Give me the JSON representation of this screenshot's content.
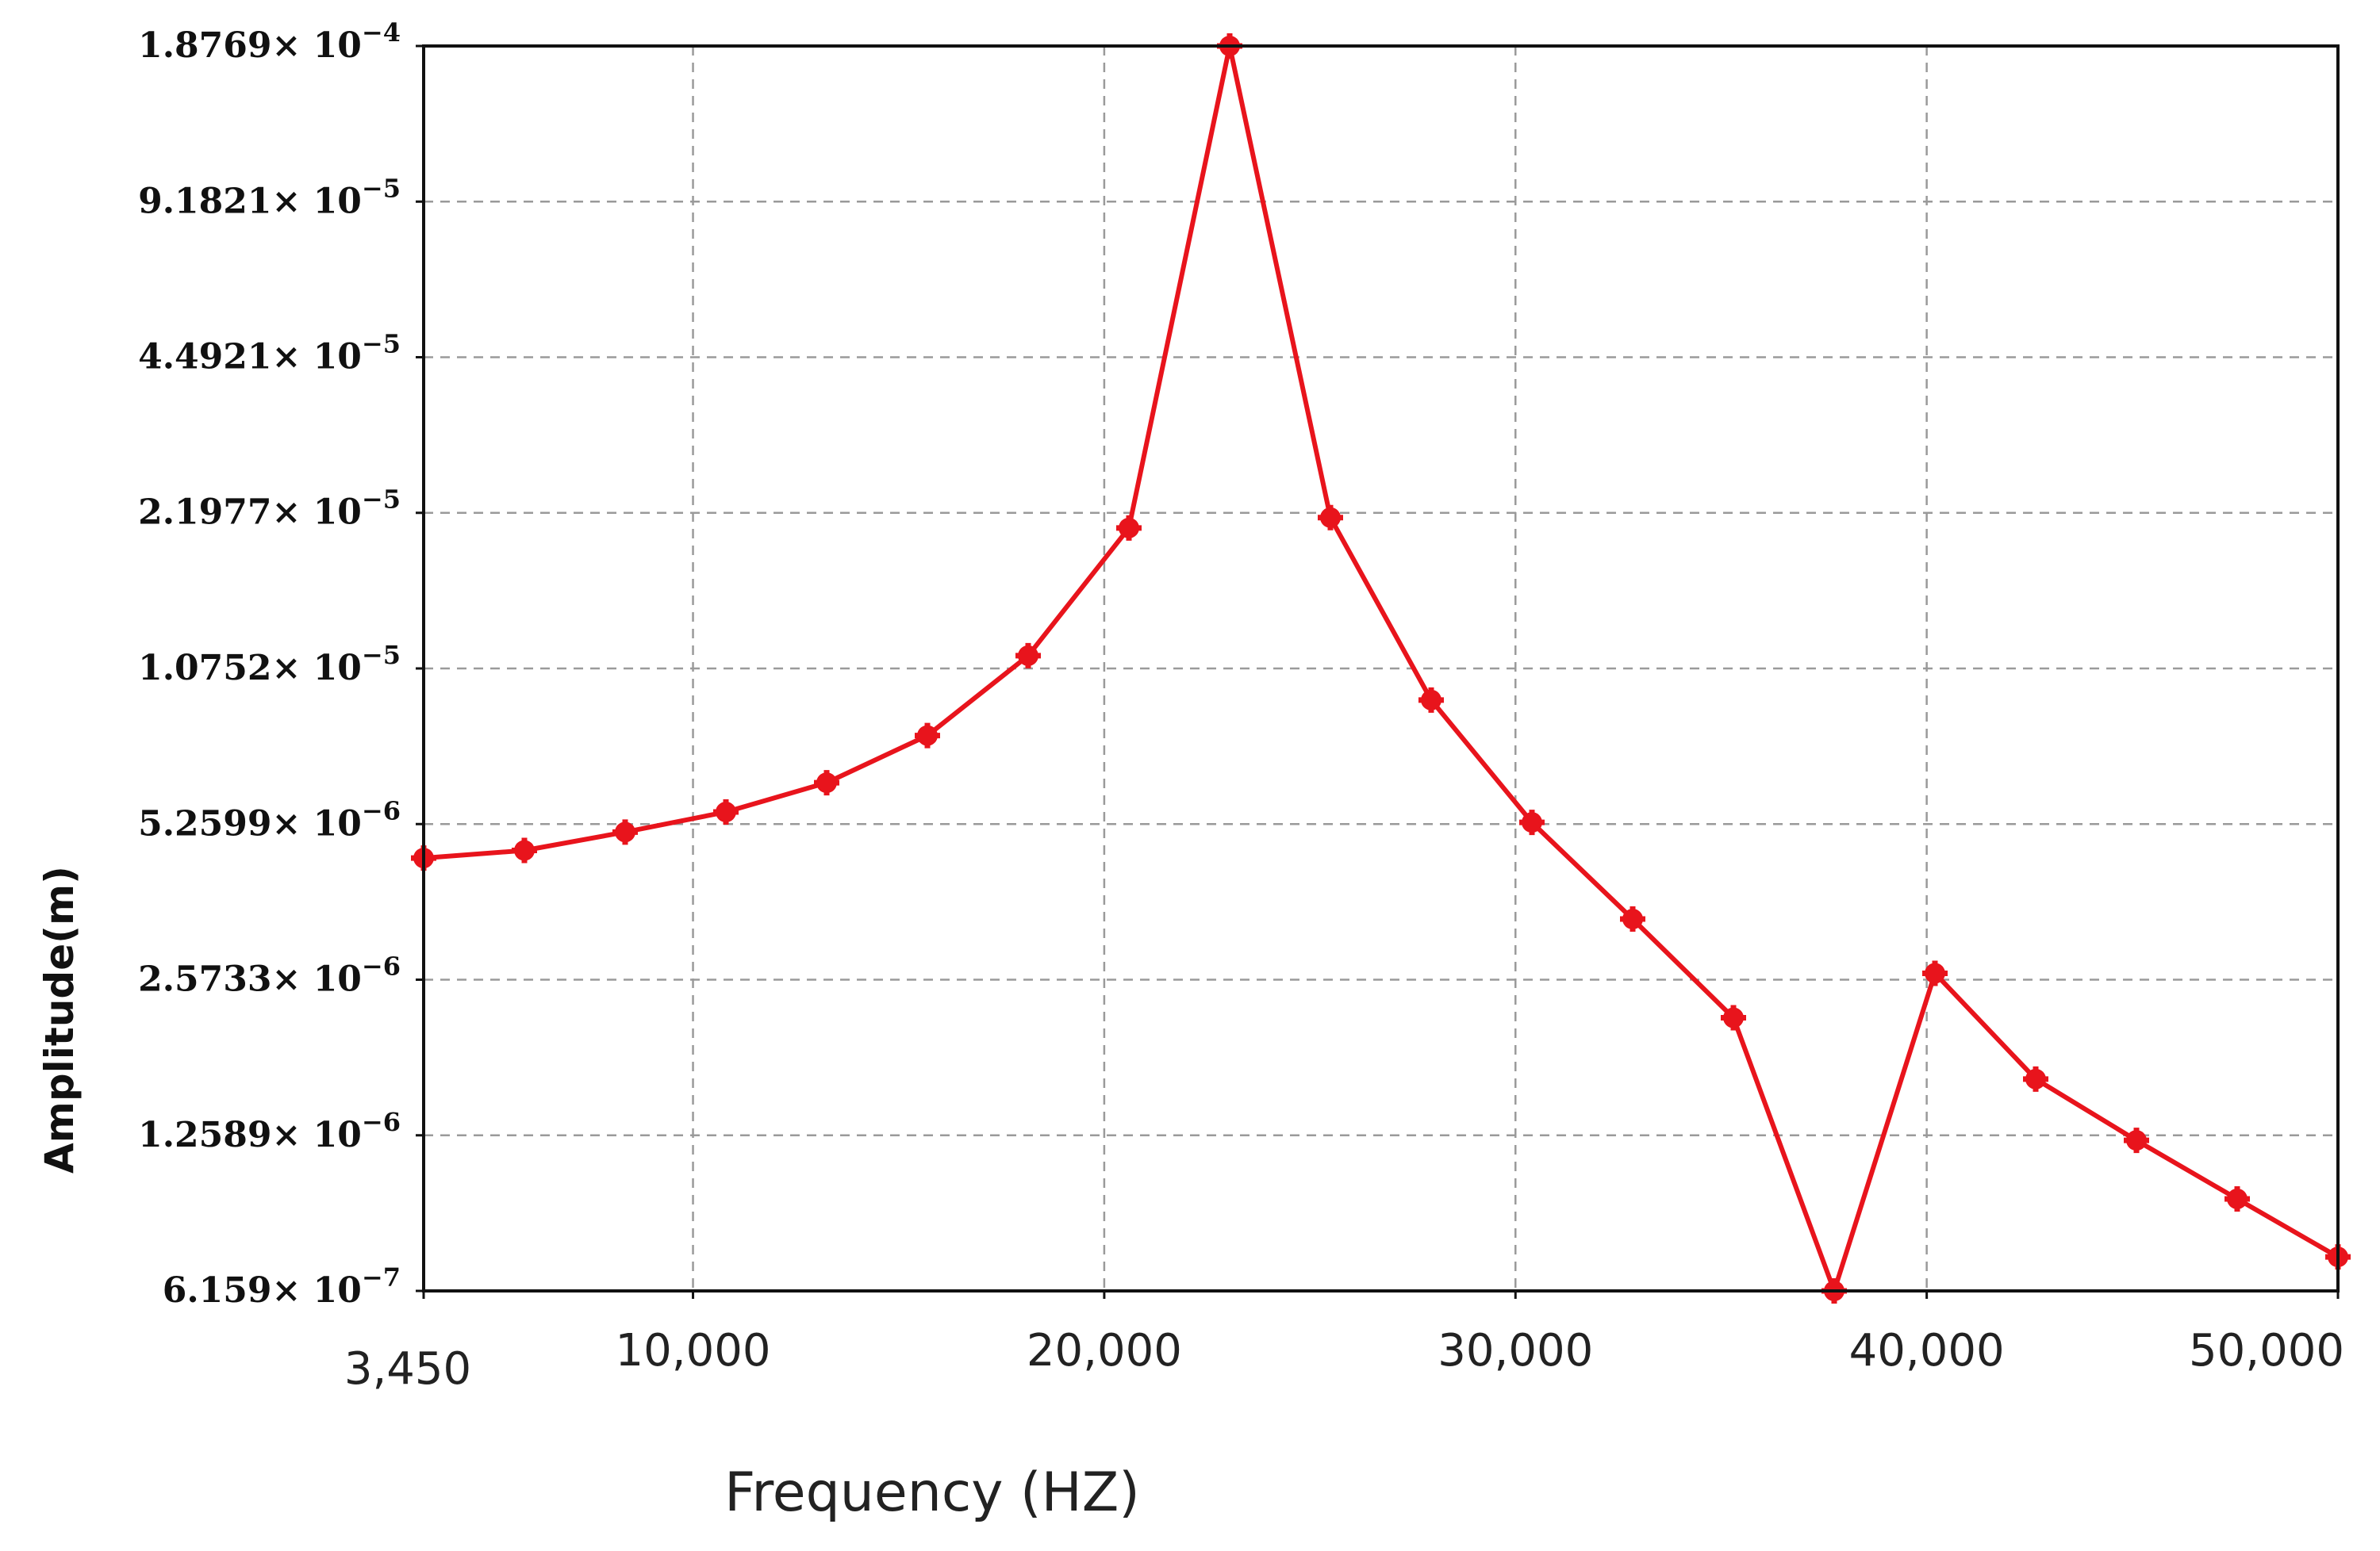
{
  "chart_data": {
    "type": "line",
    "xlabel": "Frequency (HZ)",
    "ylabel": "Amplitude(m)",
    "xlim": [
      3450,
      50000
    ],
    "x_ticks": [
      {
        "value": 3450,
        "label": "3,450"
      },
      {
        "value": 10000,
        "label": "10,000"
      },
      {
        "value": 20000,
        "label": "20,000"
      },
      {
        "value": 30000,
        "label": "30,000"
      },
      {
        "value": 40000,
        "label": "40,000"
      },
      {
        "value": 50000,
        "label": "50,000"
      }
    ],
    "y_scale": "log",
    "ylim": [
      6.159e-07,
      0.00018769
    ],
    "y_ticks": [
      {
        "value": 0.00018769,
        "mantissa": "1.8769",
        "exponent": "−4"
      },
      {
        "value": 9.1821e-05,
        "mantissa": "9.1821",
        "exponent": "−5"
      },
      {
        "value": 4.4921e-05,
        "mantissa": "4.4921",
        "exponent": "−5"
      },
      {
        "value": 2.1977e-05,
        "mantissa": "2.1977",
        "exponent": "−5"
      },
      {
        "value": 1.0752e-05,
        "mantissa": "1.0752",
        "exponent": "−5"
      },
      {
        "value": 5.2599e-06,
        "mantissa": "5.2599",
        "exponent": "−6"
      },
      {
        "value": 2.5733e-06,
        "mantissa": "2.5733",
        "exponent": "−6"
      },
      {
        "value": 1.2589e-06,
        "mantissa": "1.2589",
        "exponent": "−6"
      },
      {
        "value": 6.159e-07,
        "mantissa": "6.159",
        "exponent": "−7"
      }
    ],
    "y_tick_separator": "× 10",
    "grid": true,
    "series": [
      {
        "color": "#e8141c",
        "x": [
          3450,
          5900,
          8350,
          10800,
          13250,
          15700,
          18150,
          20600,
          23050,
          25500,
          27950,
          30400,
          32850,
          35300,
          37750,
          40200,
          42650,
          45100,
          47550,
          50000
        ],
        "y": [
          4.5e-06,
          4.66e-06,
          5.07e-06,
          5.56e-06,
          6.36e-06,
          7.9e-06,
          1.14e-05,
          2.05e-05,
          0.00018769,
          2.15e-05,
          9.3e-06,
          5.3e-06,
          3.4e-06,
          2.16e-06,
          6.159e-07,
          2.65e-06,
          1.63e-06,
          1.23e-06,
          9.4e-07,
          7.2e-07
        ]
      }
    ]
  }
}
